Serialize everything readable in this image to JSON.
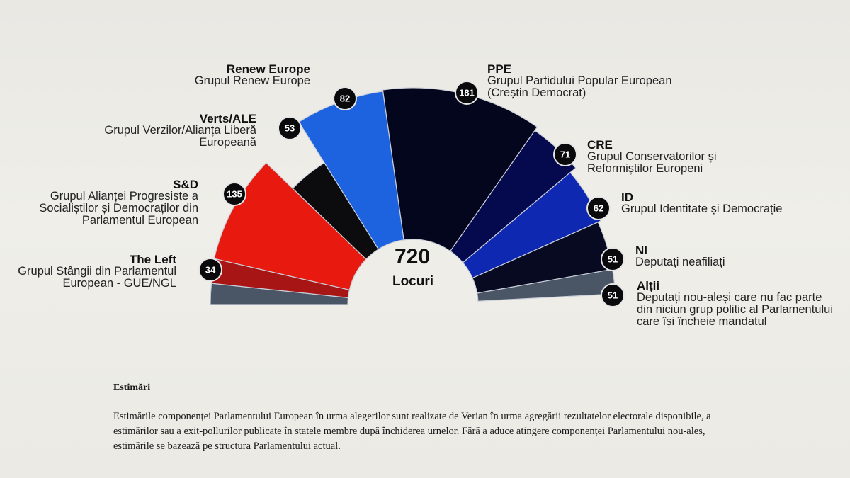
{
  "chart_data": {
    "type": "parliament-hemicycle",
    "total": "720",
    "total_label": "Locuri",
    "groups": [
      {
        "short": "",
        "name": "",
        "seats": null,
        "color": "#4a5566"
      },
      {
        "short": "The Left",
        "name": "Grupul Stângii din Parlamentul European - GUE/NGL",
        "seats": 34,
        "color": "#a81515"
      },
      {
        "short": "S&D",
        "name": "Grupul Alianței Progresiste a Socialiștilor și Democraților din Parlamentul European",
        "seats": 135,
        "color": "#e8190e"
      },
      {
        "short": "Verts/ALE",
        "name": "Grupul Verzilor/Alianța Liberă Europeană",
        "seats": 53,
        "color": "#0c0c0f"
      },
      {
        "short": "Renew Europe",
        "name": "Grupul Renew Europe",
        "seats": 82,
        "color": "#1d63e0"
      },
      {
        "short": "PPE",
        "name": "Grupul Partidului Popular European (Creștin Democrat)",
        "seats": 181,
        "color": "#04061e"
      },
      {
        "short": "CRE",
        "name": "Grupul Conservatorilor și Reformiștilor Europeni",
        "seats": 71,
        "color": "#050a4e"
      },
      {
        "short": "ID",
        "name": "Grupul Identitate și Democrație",
        "seats": 62,
        "color": "#0e28b2"
      },
      {
        "short": "NI",
        "name": "Deputați neafiliați",
        "seats": 51,
        "color": "#080a22"
      },
      {
        "short": "Alții",
        "name": "Deputați nou-aleși care nu fac parte din niciun grup politic al Parlamentului care își încheie mandatul",
        "seats": 51,
        "color": "#4a5566"
      }
    ]
  },
  "notes": {
    "heading": "Estimări",
    "text": "Estimările componenței Parlamentului European în urma alegerilor sunt realizate de Verian în urma agregării rezultatelor electorale disponibile, a estimărilor sau a exit-pollurilor publicate în statele membre după închiderea urnelor. Fără a aduce atingere componenței Parlamentului nou-ales, estimările se bazează pe structura Parlamentului actual."
  }
}
